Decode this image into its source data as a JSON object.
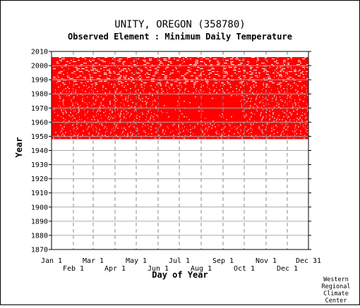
{
  "chart_data": {
    "type": "heatmap",
    "title": "UNITY, OREGON   (358780)",
    "subtitle": "Observed Element : Minimum Daily Temperature",
    "xlabel": "Day of Year",
    "ylabel": "Year",
    "ylim": [
      1870,
      2010
    ],
    "yticks": [
      1870,
      1880,
      1890,
      1900,
      1910,
      1920,
      1930,
      1940,
      1950,
      1960,
      1970,
      1980,
      1990,
      2000,
      2010
    ],
    "xticks_top": [
      {
        "label": "Jan 1",
        "day": 1
      },
      {
        "label": "Mar 1",
        "day": 60
      },
      {
        "label": "May 1",
        "day": 121
      },
      {
        "label": "Jul 1",
        "day": 182
      },
      {
        "label": "Sep 1",
        "day": 244
      },
      {
        "label": "Nov 1",
        "day": 305
      },
      {
        "label": "Dec 31",
        "day": 365
      }
    ],
    "xticks_bottom": [
      {
        "label": "Feb 1",
        "day": 32
      },
      {
        "label": "Apr 1",
        "day": 91
      },
      {
        "label": "Jun 1",
        "day": 152
      },
      {
        "label": "Aug 1",
        "day": 213
      },
      {
        "label": "Oct 1",
        "day": 274
      },
      {
        "label": "Dec 1",
        "day": 335
      }
    ],
    "data_color": "#ff0000",
    "observed_years": [
      1948,
      2006
    ],
    "grid": true
  },
  "credit": [
    "Western",
    "Regional",
    "Climate",
    "Center"
  ]
}
